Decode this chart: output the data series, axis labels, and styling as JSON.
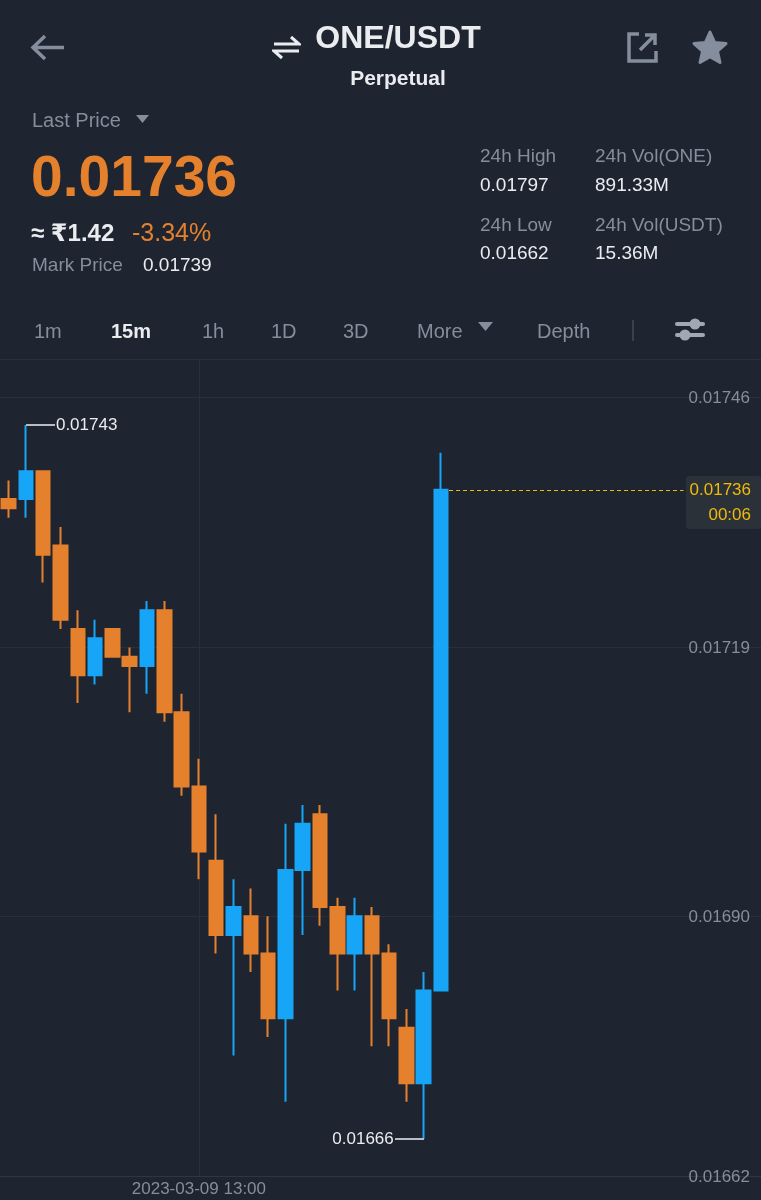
{
  "chart_data": {
    "type": "candlestick",
    "title": "ONE/USDT",
    "subtitle": "Perpetual",
    "categories": [
      null,
      null,
      null,
      null,
      null,
      null,
      null,
      null,
      null,
      null,
      null,
      "2023-03-09 13:00",
      null,
      null,
      null,
      null,
      null,
      null,
      null,
      null,
      null,
      null,
      null,
      null,
      null,
      null,
      null,
      null,
      null,
      null,
      null,
      null,
      null,
      null,
      null,
      null,
      null,
      null,
      null,
      null,
      null,
      null,
      null,
      null
    ],
    "ohlc": [
      [
        0.01735,
        0.01737,
        0.01733,
        0.01734
      ],
      [
        0.01735,
        0.01743,
        0.01733,
        0.01738
      ],
      [
        0.01738,
        0.01738,
        0.01726,
        0.01729
      ],
      [
        0.0173,
        0.01732,
        0.01721,
        0.01722
      ],
      [
        0.01721,
        0.01723,
        0.01713,
        0.01716
      ],
      [
        0.01716,
        0.01722,
        0.01715,
        0.0172
      ],
      [
        0.01721,
        0.01721,
        0.01718,
        0.01718
      ],
      [
        0.01718,
        0.01719,
        0.01712,
        0.01717
      ],
      [
        0.01717,
        0.01724,
        0.01714,
        0.01723
      ],
      [
        0.01723,
        0.01724,
        0.01711,
        0.01712
      ],
      [
        0.01712,
        0.01714,
        0.01703,
        0.01704
      ],
      [
        0.01704,
        0.01707,
        0.01694,
        0.01697
      ],
      [
        0.01696,
        0.01701,
        0.01686,
        0.01688
      ],
      [
        0.01688,
        0.01694,
        0.01675,
        0.01691
      ],
      [
        0.0169,
        0.01693,
        0.01684,
        0.01686
      ],
      [
        0.01686,
        0.0169,
        0.01677,
        0.01679
      ],
      [
        0.01679,
        0.017,
        0.0167,
        0.01695
      ],
      [
        0.01695,
        0.01702,
        0.01688,
        0.017
      ],
      [
        0.01701,
        0.01702,
        0.01689,
        0.01691
      ],
      [
        0.01691,
        0.01692,
        0.01682,
        0.01686
      ],
      [
        0.01686,
        0.01692,
        0.01682,
        0.0169
      ],
      [
        0.0169,
        0.01691,
        0.01676,
        0.01686
      ],
      [
        0.01686,
        0.01687,
        0.01676,
        0.01679
      ],
      [
        0.01678,
        0.0168,
        0.0167,
        0.01672
      ],
      [
        0.01672,
        0.01684,
        0.01666,
        0.01682
      ],
      [
        0.01682,
        0.0174,
        0.01682,
        0.01736
      ],
      null,
      null,
      null,
      null,
      null,
      null,
      null,
      null,
      null,
      null,
      null,
      null,
      null,
      null,
      null,
      null,
      null,
      null
    ],
    "colors": [
      "#e5812d",
      "#16a5f7",
      "#e5812d",
      "#e5812d",
      "#e5812d",
      "#16a5f7",
      "#e5812d",
      "#e5812d",
      "#16a5f7",
      "#e5812d",
      "#e5812d",
      "#e5812d",
      "#e5812d",
      "#16a5f7",
      "#e5812d",
      "#e5812d",
      "#16a5f7",
      "#16a5f7",
      "#e5812d",
      "#e5812d",
      "#16a5f7",
      "#e5812d",
      "#e5812d",
      "#e5812d",
      "#16a5f7",
      "#16a5f7",
      null,
      null,
      null,
      null,
      null,
      null,
      null,
      null,
      null,
      null,
      null,
      null,
      null,
      null,
      null,
      null,
      null,
      null
    ],
    "ylim": [
      0.01662,
      0.0175
    ],
    "yticks": [
      0.01662,
      {
        "value": 0.0169,
        "label": "0.01690"
      },
      0.01719,
      0.01746
    ],
    "grid": true,
    "ref_lines": [
      {
        "axis": "y",
        "value": 0.01736,
        "label": "0.01736\n00:06",
        "color": "#f0b90b",
        "line_style": "dashed"
      }
    ],
    "annotations": [
      "Last Price",
      "0.01736",
      "≈ ₹1.42",
      "-3.34%",
      "Mark Price",
      "0.01739",
      "24h High",
      "0.01797",
      "24h Vol(ONE)",
      "891.33M",
      "24h Low",
      "0.01662",
      "24h Vol(USDT)",
      "15.36M",
      "1m",
      "15m",
      "1h",
      "1D",
      "3D",
      "More",
      "Depth",
      "0.01743",
      "0.01666"
    ]
  }
}
